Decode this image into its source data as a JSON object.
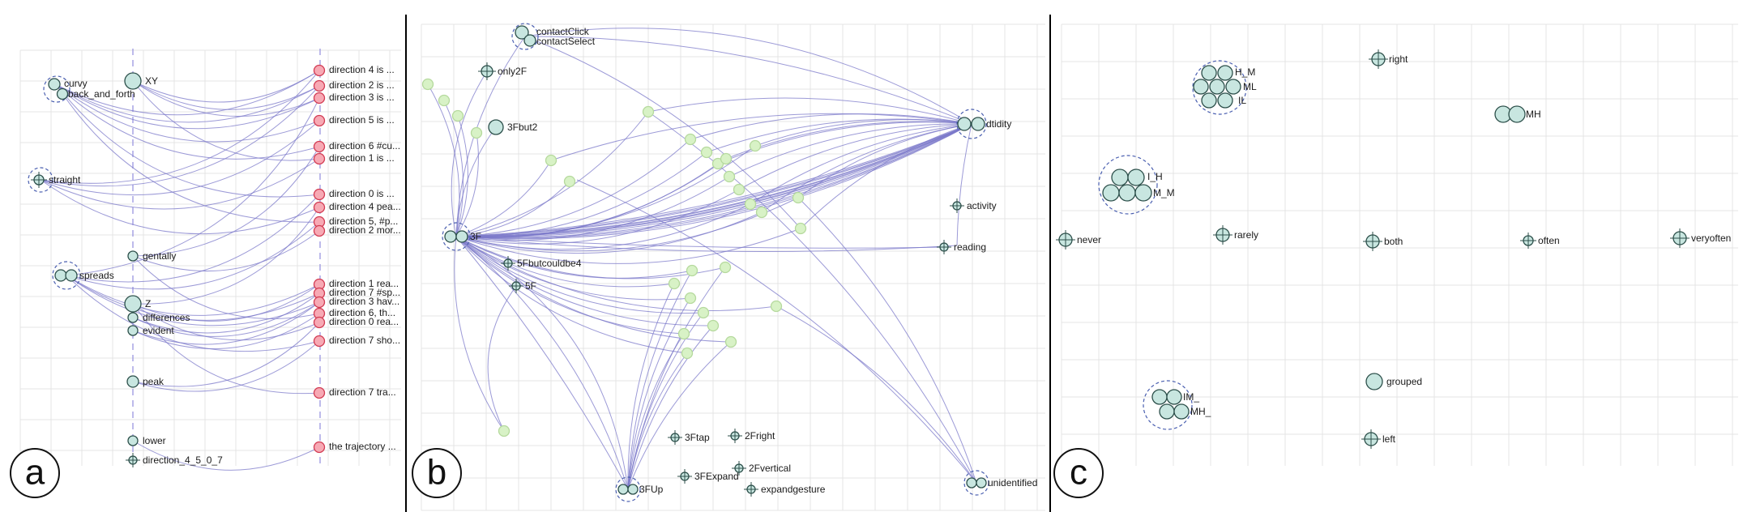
{
  "colors": {
    "edge": "#7b78c9",
    "node_fill": "#c8e6e0",
    "node_stroke": "#2c4f4a",
    "hidden_fill": "#d8f2c6",
    "hidden_stroke": "#b5d99d",
    "target_fill": "#f7a9b4",
    "target_stroke": "#d23a52",
    "guide": "#9a96e0",
    "grid": "#e4e4e4",
    "divider": "#000000"
  },
  "panel_a": {
    "badge": "a",
    "labels": {
      "curvy": "curvy",
      "back_and_forth": "back_and_forth",
      "xy": "XY",
      "straight": "straight",
      "spread": "spreads",
      "gentally": "gentally",
      "z": "Z",
      "differences": "differences",
      "evident": "evident",
      "peak": "peak",
      "lower": "lower",
      "direction_4507": "direction_4_5_0_7"
    },
    "targets": [
      "direction 4 is ...",
      "direction 2 is ...",
      "direction 3 is ...",
      "direction 5 is ...",
      "direction 6 #cu...",
      "direction 1 is ...",
      "direction 0 is ...",
      "direction 4 pea...",
      "direction 5, #p...",
      "direction 2 mor...",
      "direction 1 rea...",
      "direction 7 #sp...",
      "direction 3 hav...",
      "direction 6, th...",
      "direction 0 rea...",
      "direction 7 sho...",
      "direction 7 tra...",
      "the trajectory ..."
    ]
  },
  "panel_b": {
    "badge": "b",
    "labels": {
      "contact_click": "contactClick",
      "contact_select": "contactSelect",
      "only2f": "only2F",
      "fbut2": "3Fbut2",
      "f3": "3F",
      "fbut_couldbe4": "5Fbutcouldbe4",
      "f5": "5F",
      "dtidity": "dtidity",
      "activity": "activity",
      "reading": "reading",
      "ftap": "3Ftap",
      "fright": "2Fright",
      "fvertical": "2Fvertical",
      "fexpand": "3FExpand",
      "fup": "3FUp",
      "expandgesture": "expandgesture",
      "unidentified": "unidentified"
    }
  },
  "panel_c": {
    "badge": "c",
    "labels": {
      "right": "right",
      "hm": "H_M",
      "ml": "ML",
      "il": "IL",
      "mh": "MH",
      "ih": "I_H",
      "mm": "M_M",
      "never": "never",
      "rarely": "rarely",
      "both": "both",
      "often": "often",
      "veryoften": "veryoften",
      "grouped": "grouped",
      "im": "IM_",
      "mh2": "MH_",
      "left": "left"
    }
  }
}
